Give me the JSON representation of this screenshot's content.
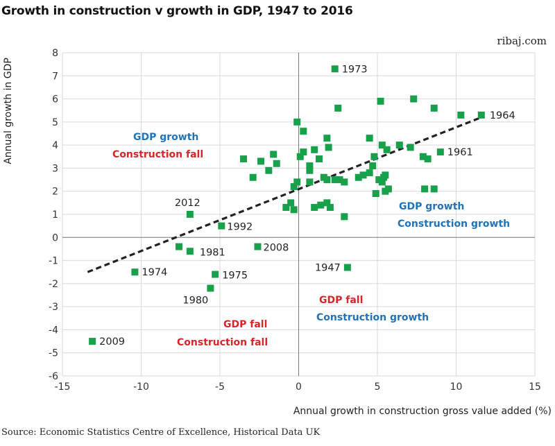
{
  "header": {
    "title": "Growth in construction v growth in GDP, 1947 to 2016",
    "brand": "ribaj.com"
  },
  "footer": {
    "source": "Source: Economic Statistics Centre of Excellence, Historical Data UK"
  },
  "colors": {
    "point": "#19a04a",
    "trend": "#222222",
    "gdp_growth_text": "#1f73b8",
    "construction_growth_text": "#1f73b8",
    "fall_text": "#d6262b",
    "grid": "#d9d9d9"
  },
  "chart_data": {
    "type": "scatter",
    "title": "Growth in construction v growth in GDP, 1947 to 2016",
    "xlabel": "Annual growth in construction gross value added (%)",
    "ylabel": "Annual growth in GDP",
    "xlim": [
      -15,
      15
    ],
    "ylim": [
      -6,
      8
    ],
    "xticks": [
      "-15",
      "-10",
      "-5",
      "0",
      "5",
      "10",
      "15"
    ],
    "yticks": [
      "-6",
      "-5",
      "-4",
      "-3",
      "-2",
      "-1",
      "0",
      "1",
      "2",
      "3",
      "4",
      "5",
      "6",
      "7",
      "8"
    ],
    "grid": "vertical and horizontal at every tick",
    "trendline": {
      "style": "dashed",
      "from": [
        -13.4,
        -1.5
      ],
      "to": [
        11.6,
        5.2
      ]
    },
    "labeled_points": [
      {
        "label": "1973",
        "x": 2.3,
        "y": 7.3
      },
      {
        "label": "1964",
        "x": 11.6,
        "y": 5.3
      },
      {
        "label": "1961",
        "x": 9.0,
        "y": 3.7
      },
      {
        "label": "2012",
        "x": -6.9,
        "y": 1.0
      },
      {
        "label": "1992",
        "x": -4.9,
        "y": 0.5
      },
      {
        "label": "2008",
        "x": -2.6,
        "y": -0.4
      },
      {
        "label": "1981",
        "x": -6.9,
        "y": -0.6
      },
      {
        "label": "1974",
        "x": -10.4,
        "y": -1.5
      },
      {
        "label": "1975",
        "x": -5.3,
        "y": -1.6
      },
      {
        "label": "1980",
        "x": -5.6,
        "y": -2.2
      },
      {
        "label": "1947",
        "x": 3.1,
        "y": -1.3
      },
      {
        "label": "2009",
        "x": -13.1,
        "y": -4.5
      }
    ],
    "points": [
      {
        "x": 2.5,
        "y": 5.6
      },
      {
        "x": 5.2,
        "y": 5.9
      },
      {
        "x": 7.3,
        "y": 6.0
      },
      {
        "x": 8.6,
        "y": 5.6
      },
      {
        "x": 10.3,
        "y": 5.3
      },
      {
        "x": -0.1,
        "y": 5.0
      },
      {
        "x": 0.3,
        "y": 4.6
      },
      {
        "x": 1.8,
        "y": 4.3
      },
      {
        "x": 4.5,
        "y": 4.3
      },
      {
        "x": 5.3,
        "y": 4.0
      },
      {
        "x": 6.4,
        "y": 4.0
      },
      {
        "x": 7.1,
        "y": 3.9
      },
      {
        "x": 1.9,
        "y": 3.9
      },
      {
        "x": -1.6,
        "y": 3.6
      },
      {
        "x": -3.5,
        "y": 3.4
      },
      {
        "x": -2.4,
        "y": 3.3
      },
      {
        "x": -1.4,
        "y": 3.2
      },
      {
        "x": -1.9,
        "y": 2.9
      },
      {
        "x": -2.9,
        "y": 2.6
      },
      {
        "x": 0.1,
        "y": 3.5
      },
      {
        "x": 0.3,
        "y": 3.7
      },
      {
        "x": 0.7,
        "y": 3.1
      },
      {
        "x": 0.7,
        "y": 2.9
      },
      {
        "x": 1.0,
        "y": 3.8
      },
      {
        "x": 1.3,
        "y": 3.4
      },
      {
        "x": 1.6,
        "y": 2.6
      },
      {
        "x": 1.8,
        "y": 2.5
      },
      {
        "x": 2.3,
        "y": 2.5
      },
      {
        "x": 2.6,
        "y": 2.5
      },
      {
        "x": 2.9,
        "y": 2.4
      },
      {
        "x": 0.7,
        "y": 2.4
      },
      {
        "x": -0.3,
        "y": 2.2
      },
      {
        "x": -0.1,
        "y": 2.4
      },
      {
        "x": 3.8,
        "y": 2.6
      },
      {
        "x": 4.1,
        "y": 2.7
      },
      {
        "x": 4.5,
        "y": 2.8
      },
      {
        "x": 4.7,
        "y": 3.1
      },
      {
        "x": 4.8,
        "y": 3.5
      },
      {
        "x": 5.1,
        "y": 2.5
      },
      {
        "x": 5.3,
        "y": 2.4
      },
      {
        "x": 5.4,
        "y": 2.6
      },
      {
        "x": 5.5,
        "y": 2.7
      },
      {
        "x": 5.5,
        "y": 2.0
      },
      {
        "x": 5.7,
        "y": 2.1
      },
      {
        "x": 5.6,
        "y": 3.8
      },
      {
        "x": 4.9,
        "y": 1.9
      },
      {
        "x": 7.9,
        "y": 3.5
      },
      {
        "x": 8.2,
        "y": 3.4
      },
      {
        "x": 8.0,
        "y": 2.1
      },
      {
        "x": 8.6,
        "y": 2.1
      },
      {
        "x": -0.5,
        "y": 1.5
      },
      {
        "x": -0.8,
        "y": 1.3
      },
      {
        "x": -0.3,
        "y": 1.2
      },
      {
        "x": 1.0,
        "y": 1.3
      },
      {
        "x": 1.4,
        "y": 1.4
      },
      {
        "x": 1.8,
        "y": 1.5
      },
      {
        "x": 2.0,
        "y": 1.3
      },
      {
        "x": 2.9,
        "y": 0.9
      },
      {
        "x": -7.6,
        "y": -0.4
      }
    ],
    "annotations": [
      {
        "lines": [
          {
            "text": "GDP growth",
            "color": "blue"
          },
          {
            "text": "Construction fall",
            "color": "red"
          }
        ],
        "pos": "top-left"
      },
      {
        "lines": [
          {
            "text": "GDP growth",
            "color": "blue"
          },
          {
            "text": "Construction growth",
            "color": "blue"
          }
        ],
        "pos": "top-right"
      },
      {
        "lines": [
          {
            "text": "GDP fall",
            "color": "red"
          },
          {
            "text": "Construction growth",
            "color": "blue"
          }
        ],
        "pos": "bottom-right"
      },
      {
        "lines": [
          {
            "text": "GDP fall",
            "color": "red"
          },
          {
            "text": "Construction fall",
            "color": "red"
          }
        ],
        "pos": "bottom-left"
      }
    ]
  }
}
